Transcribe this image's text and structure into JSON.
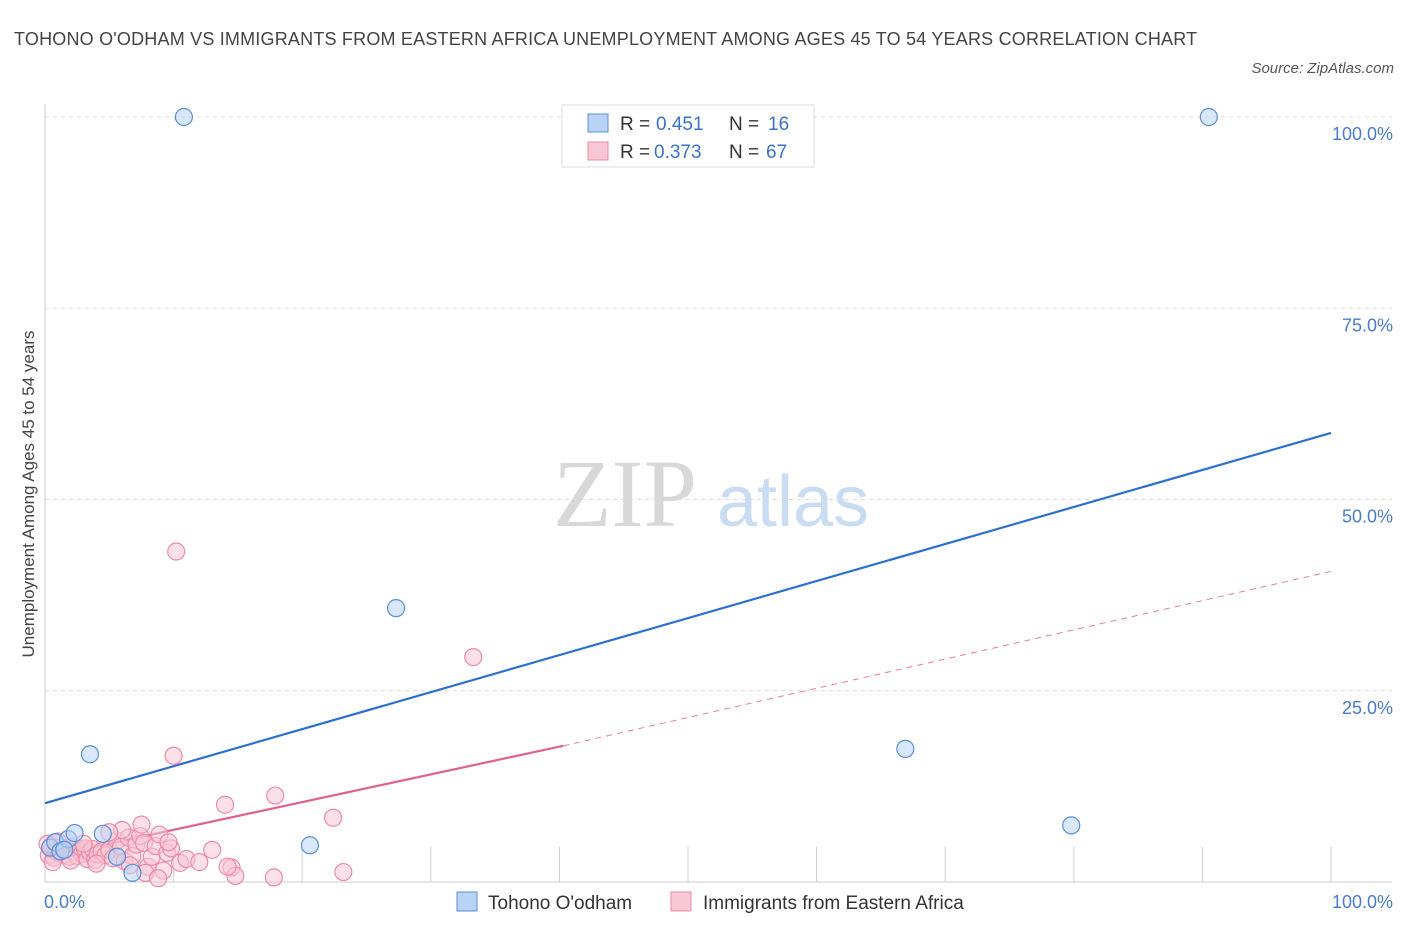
{
  "title": "TOHONO O'ODHAM VS IMMIGRANTS FROM EASTERN AFRICA UNEMPLOYMENT AMONG AGES 45 TO 54 YEARS CORRELATION CHART",
  "source": "Source: ZipAtlas.com",
  "watermark": {
    "zip": "ZIP",
    "atlas": "atlas"
  },
  "chart_data": {
    "type": "scatter",
    "xlabel": "",
    "ylabel": "Unemployment Among Ages 45 to 54 years",
    "xlim": [
      0,
      100
    ],
    "ylim": [
      0,
      100
    ],
    "x_tick_labels": {
      "min": "0.0%",
      "max": "100.0%"
    },
    "y_ticks": [
      {
        "value": 25,
        "label": "25.0%"
      },
      {
        "value": 50,
        "label": "50.0%"
      },
      {
        "value": 75,
        "label": "75.0%"
      },
      {
        "value": 100,
        "label": "100.0%"
      }
    ],
    "grid": true,
    "legend_position": "top-center",
    "series": [
      {
        "name": "Tohono O'odham",
        "color": "#5b8fd6",
        "fill": "#b8d3f5",
        "R": "0.451",
        "N": "16",
        "trend": {
          "x0": 0,
          "y0": 10.3,
          "x1": 100,
          "y1": 58.7,
          "style": "solid",
          "color": "#2d6fd0"
        },
        "points": [
          [
            0.4,
            4.5
          ],
          [
            0.8,
            5.2
          ],
          [
            1.2,
            4.0
          ],
          [
            1.8,
            5.6
          ],
          [
            2.3,
            6.4
          ],
          [
            3.5,
            16.7
          ],
          [
            4.5,
            6.3
          ],
          [
            5.6,
            3.3
          ],
          [
            6.8,
            1.2
          ],
          [
            10.8,
            100.0
          ],
          [
            20.6,
            4.8
          ],
          [
            27.3,
            35.8
          ],
          [
            66.9,
            17.4
          ],
          [
            79.8,
            7.4
          ],
          [
            90.5,
            100.0
          ],
          [
            1.5,
            4.2
          ]
        ]
      },
      {
        "name": "Immigrants from Eastern Africa",
        "color": "#ee8aa8",
        "fill": "#f8c7d5",
        "R": "0.373",
        "N": "67",
        "trend": {
          "x0": 0,
          "y0": 3.2,
          "x1": 40.3,
          "y1": 17.8,
          "ext_x1": 100,
          "ext_y1": 40.6,
          "style": "solid-then-dashed",
          "color": "#e0628a"
        },
        "points": [
          [
            0.3,
            3.5
          ],
          [
            0.5,
            4.8
          ],
          [
            0.7,
            3.2
          ],
          [
            0.9,
            4.0
          ],
          [
            1.1,
            3.8
          ],
          [
            1.3,
            4.5
          ],
          [
            1.5,
            3.6
          ],
          [
            1.7,
            4.2
          ],
          [
            1.9,
            3.3
          ],
          [
            2.1,
            4.6
          ],
          [
            2.3,
            3.9
          ],
          [
            2.5,
            3.4
          ],
          [
            2.7,
            4.1
          ],
          [
            2.9,
            3.7
          ],
          [
            3.1,
            4.4
          ],
          [
            3.3,
            3.0
          ],
          [
            3.5,
            3.9
          ],
          [
            3.7,
            4.3
          ],
          [
            3.9,
            2.9
          ],
          [
            4.1,
            3.6
          ],
          [
            4.4,
            4.0
          ],
          [
            4.7,
            3.5
          ],
          [
            5.0,
            4.2
          ],
          [
            5.3,
            3.1
          ],
          [
            5.6,
            5.4
          ],
          [
            5.9,
            4.6
          ],
          [
            6.2,
            2.7
          ],
          [
            6.5,
            5.8
          ],
          [
            6.8,
            3.4
          ],
          [
            7.1,
            4.9
          ],
          [
            7.4,
            6.0
          ],
          [
            7.7,
            5.1
          ],
          [
            8.0,
            2.0
          ],
          [
            8.3,
            3.3
          ],
          [
            8.6,
            4.7
          ],
          [
            8.9,
            6.2
          ],
          [
            9.2,
            1.5
          ],
          [
            9.5,
            3.8
          ],
          [
            9.8,
            4.4
          ],
          [
            10.2,
            43.2
          ],
          [
            10.0,
            16.5
          ],
          [
            10.5,
            2.5
          ],
          [
            11.0,
            3.0
          ],
          [
            7.5,
            7.5
          ],
          [
            6.0,
            6.8
          ],
          [
            13.0,
            4.2
          ],
          [
            14.0,
            10.1
          ],
          [
            14.5,
            1.9
          ],
          [
            14.8,
            0.8
          ],
          [
            17.8,
            0.6
          ],
          [
            17.9,
            11.3
          ],
          [
            22.4,
            8.4
          ],
          [
            23.2,
            1.3
          ],
          [
            33.3,
            29.4
          ],
          [
            0.2,
            5.0
          ],
          [
            0.6,
            2.6
          ],
          [
            1.0,
            5.3
          ],
          [
            2.0,
            2.8
          ],
          [
            3.0,
            5.0
          ],
          [
            4.0,
            2.4
          ],
          [
            5.0,
            6.5
          ],
          [
            6.6,
            2.2
          ],
          [
            7.8,
            1.2
          ],
          [
            8.8,
            0.5
          ],
          [
            9.6,
            5.2
          ],
          [
            12.0,
            2.6
          ],
          [
            14.2,
            2.0
          ]
        ]
      }
    ]
  }
}
